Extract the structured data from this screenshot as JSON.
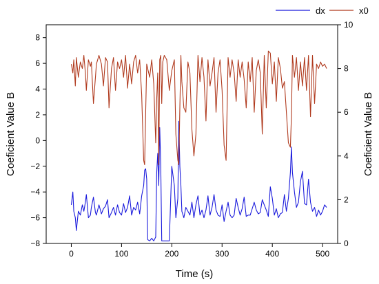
{
  "chart_data": {
    "type": "line",
    "xlabel": "Time (s)",
    "ylabel_left": "Coeficient Value B",
    "ylabel_right": "Coeficient Value B",
    "xlim": [
      -50,
      530
    ],
    "ylim_left": [
      -8,
      9
    ],
    "ylim_right": [
      0,
      10
    ],
    "x_ticks": [
      0,
      100,
      200,
      300,
      400,
      500
    ],
    "y_ticks_left": [
      -8,
      -6,
      -4,
      -2,
      0,
      2,
      4,
      6,
      8
    ],
    "y_ticks_right": [
      0,
      2,
      4,
      6,
      8,
      10
    ],
    "grid": false,
    "legend_position": "top-right",
    "series": [
      {
        "name": "dx",
        "axis": "left",
        "color": "#1a1adc",
        "x": [
          0,
          3,
          5,
          8,
          10,
          14,
          18,
          22,
          25,
          28,
          30,
          34,
          38,
          40,
          44,
          48,
          50,
          55,
          60,
          64,
          68,
          72,
          75,
          80,
          84,
          88,
          92,
          96,
          100,
          104,
          108,
          112,
          116,
          120,
          124,
          128,
          132,
          136,
          140,
          144,
          146,
          148,
          150,
          152,
          156,
          160,
          164,
          168,
          170,
          172,
          174,
          176,
          178,
          180,
          182,
          185,
          190,
          195,
          200,
          205,
          208,
          212,
          214,
          216,
          218,
          220,
          224,
          228,
          232,
          236,
          240,
          244,
          248,
          252,
          256,
          260,
          264,
          268,
          272,
          276,
          280,
          284,
          288,
          292,
          296,
          300,
          304,
          308,
          312,
          316,
          320,
          324,
          328,
          332,
          336,
          340,
          344,
          348,
          352,
          356,
          360,
          364,
          368,
          372,
          376,
          380,
          384,
          388,
          392,
          396,
          400,
          404,
          408,
          412,
          416,
          420,
          424,
          428,
          432,
          436,
          438,
          440,
          444,
          448,
          452,
          456,
          460,
          464,
          468,
          472,
          476,
          480,
          484,
          488,
          492,
          496,
          500,
          504,
          508
        ],
        "y": [
          -5.0,
          -4.0,
          -5.5,
          -6.0,
          -7.0,
          -5.5,
          -5.8,
          -5.0,
          -5.5,
          -4.8,
          -4.2,
          -6.0,
          -5.8,
          -5.2,
          -4.4,
          -5.6,
          -5.8,
          -5.0,
          -5.7,
          -5.3,
          -5.1,
          -4.6,
          -6.0,
          -5.6,
          -5.2,
          -5.8,
          -5.0,
          -5.6,
          -5.8,
          -4.9,
          -5.6,
          -5.2,
          -4.3,
          -5.8,
          -5.2,
          -5.4,
          -4.8,
          -5.7,
          -4.3,
          -3.5,
          -2.3,
          -2.2,
          -3.0,
          -7.7,
          -7.8,
          -7.6,
          -7.8,
          -7.5,
          -2.5,
          -1.0,
          -3.5,
          1.0,
          -2.0,
          -7.8,
          -7.8,
          -7.8,
          -7.8,
          -7.8,
          -2.0,
          -3.5,
          -6.0,
          -4.5,
          1.5,
          -2.0,
          -3.5,
          -5.5,
          -6.0,
          -5.2,
          -5.5,
          -5.8,
          -4.8,
          -6.0,
          -5.0,
          -4.3,
          -5.8,
          -5.4,
          -6.0,
          -5.4,
          -4.3,
          -5.8,
          -5.2,
          -4.2,
          -5.4,
          -5.8,
          -5.9,
          -5.0,
          -6.3,
          -5.5,
          -4.8,
          -5.8,
          -6.0,
          -5.8,
          -4.5,
          -5.2,
          -5.8,
          -5.3,
          -4.4,
          -5.9,
          -5.8,
          -5.8,
          -5.3,
          -4.8,
          -5.4,
          -5.7,
          -5.6,
          -4.6,
          -5.0,
          -5.4,
          -5.9,
          -3.6,
          -4.5,
          -5.8,
          -5.3,
          -6.0,
          -5.7,
          -5.6,
          -4.2,
          -5.5,
          -4.5,
          -2.5,
          -0.5,
          -2.5,
          -4.0,
          -5.2,
          -4.8,
          -3.2,
          -2.4,
          -4.9,
          -5.0,
          -3.0,
          -4.8,
          -5.5,
          -5.2,
          -5.9,
          -5.4,
          -5.8,
          -5.5,
          -5.0,
          -5.2
        ]
      },
      {
        "name": "x0",
        "axis": "right",
        "color": "#b03a1e",
        "x": [
          0,
          3,
          5,
          8,
          10,
          14,
          18,
          22,
          25,
          28,
          30,
          34,
          38,
          40,
          44,
          48,
          50,
          55,
          60,
          64,
          68,
          72,
          75,
          80,
          84,
          88,
          92,
          96,
          100,
          104,
          108,
          112,
          116,
          120,
          124,
          128,
          132,
          136,
          140,
          144,
          146,
          148,
          150,
          152,
          156,
          160,
          164,
          168,
          170,
          172,
          174,
          176,
          178,
          180,
          182,
          185,
          190,
          195,
          200,
          205,
          208,
          212,
          214,
          216,
          218,
          220,
          224,
          228,
          232,
          236,
          240,
          244,
          248,
          252,
          256,
          260,
          264,
          268,
          272,
          276,
          280,
          284,
          288,
          292,
          296,
          300,
          304,
          308,
          312,
          316,
          320,
          324,
          328,
          332,
          336,
          340,
          344,
          348,
          352,
          356,
          360,
          364,
          368,
          372,
          376,
          380,
          384,
          388,
          392,
          396,
          400,
          404,
          408,
          412,
          416,
          420,
          424,
          428,
          432,
          436,
          438,
          440,
          444,
          448,
          452,
          456,
          460,
          464,
          468,
          472,
          476,
          480,
          484,
          488,
          492,
          496,
          500,
          504,
          508
        ],
        "y": [
          8.2,
          7.8,
          8.4,
          7.2,
          8.5,
          7.6,
          8.3,
          8.0,
          8.6,
          7.8,
          7.0,
          8.4,
          8.1,
          8.3,
          6.4,
          7.6,
          8.2,
          8.6,
          8.2,
          7.2,
          8.5,
          8.3,
          6.2,
          8.0,
          8.5,
          7.0,
          8.3,
          8.0,
          8.4,
          7.6,
          8.6,
          7.1,
          8.2,
          7.3,
          8.3,
          8.6,
          7.8,
          8.4,
          6.8,
          3.8,
          3.6,
          6.0,
          8.2,
          8.0,
          7.6,
          8.4,
          7.3,
          4.6,
          6.6,
          7.8,
          3.6,
          8.4,
          8.6,
          6.4,
          8.3,
          8.6,
          8.4,
          7.0,
          7.9,
          8.4,
          5.0,
          3.8,
          3.6,
          6.2,
          8.6,
          7.4,
          6.2,
          6.0,
          8.3,
          7.8,
          5.2,
          4.0,
          5.0,
          8.6,
          7.4,
          8.5,
          7.6,
          5.6,
          8.4,
          7.2,
          7.8,
          8.5,
          6.0,
          7.8,
          8.4,
          7.0,
          4.5,
          3.8,
          8.5,
          7.6,
          8.4,
          7.8,
          6.5,
          8.4,
          7.6,
          8.3,
          7.5,
          6.2,
          8.3,
          7.4,
          8.5,
          6.0,
          7.9,
          8.4,
          7.8,
          5.0,
          8.6,
          6.2,
          8.8,
          8.7,
          7.3,
          8.3,
          6.5,
          8.5,
          8.0,
          7.1,
          7.4,
          6.0,
          4.6,
          4.4,
          5.8,
          8.6,
          7.6,
          8.5,
          7.0,
          8.3,
          7.2,
          8.5,
          7.0,
          8.6,
          5.8,
          8.6,
          6.4,
          8.2,
          8.0,
          8.3,
          8.1,
          8.2,
          8.0
        ]
      }
    ]
  }
}
